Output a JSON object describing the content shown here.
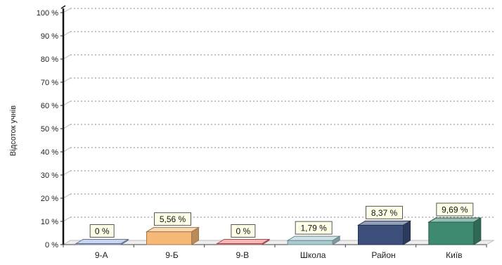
{
  "chart_data": {
    "type": "bar",
    "title": "",
    "xlabel": "",
    "ylabel": "Відсоток учнів",
    "ylim": [
      0,
      100
    ],
    "ytick_step": 10,
    "ytick_labels": [
      "0 %",
      "10 %",
      "20 %",
      "30 %",
      "40 %",
      "50 %",
      "60 %",
      "70 %",
      "80 %",
      "90 %",
      "100 %"
    ],
    "grid": true,
    "categories": [
      "9-А",
      "9-Б",
      "9-В",
      "Школа",
      "Район",
      "Київ"
    ],
    "values": [
      0,
      5.56,
      0,
      1.79,
      8.37,
      9.69
    ],
    "data_labels": [
      "0 %",
      "5,56 %",
      "0 %",
      "1,79 %",
      "8,37 %",
      "9,69 %"
    ],
    "colors": [
      "#9fb3e0",
      "#f7b977",
      "#ee7f7f",
      "#a9ccd3",
      "#3b4f7a",
      "#3e8a71"
    ]
  }
}
